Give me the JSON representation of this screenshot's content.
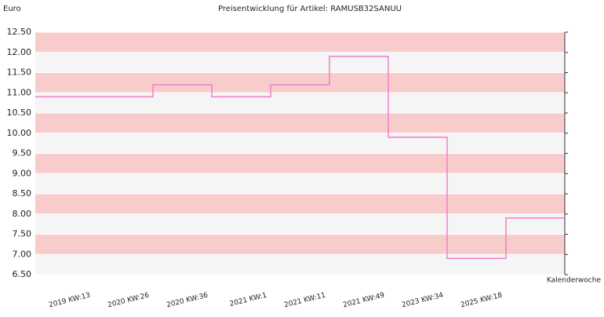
{
  "chart_data": {
    "type": "step",
    "title": "Preisentwicklung für Artikel: RAMUSB32SANUU",
    "y_label": "Euro",
    "x_label": "Kalenderwoche",
    "categories": [
      "2019 KW:13",
      "2020 KW:26",
      "2020 KW:36",
      "2021 KW:1",
      "2021 KW:11",
      "2021 KW:49",
      "2023 KW:34",
      "2025 KW:18"
    ],
    "values": [
      10.9,
      11.2,
      10.9,
      11.2,
      11.9,
      9.9,
      6.9,
      7.9
    ],
    "color": "#f07ec8",
    "ylim": [
      6.5,
      12.5
    ],
    "yticks": [
      {
        "value": 6.5,
        "label": "6.50"
      },
      {
        "value": 7,
        "label": "7.00"
      },
      {
        "value": 7.5,
        "label": "7.50"
      },
      {
        "value": 8,
        "label": "8.00"
      },
      {
        "value": 8.5,
        "label": "8.50"
      },
      {
        "value": 9,
        "label": "9.00"
      },
      {
        "value": 9.5,
        "label": "9.50"
      },
      {
        "value": 10,
        "label": "10.00"
      },
      {
        "value": 10.5,
        "label": "10.50"
      },
      {
        "value": 11,
        "label": "11.00"
      },
      {
        "value": 11.5,
        "label": "11.50"
      },
      {
        "value": 12,
        "label": "12.00"
      },
      {
        "value": 12.5,
        "label": "12.50"
      }
    ],
    "band_colors": [
      "#f9cccc",
      "#f5f5f5"
    ]
  }
}
